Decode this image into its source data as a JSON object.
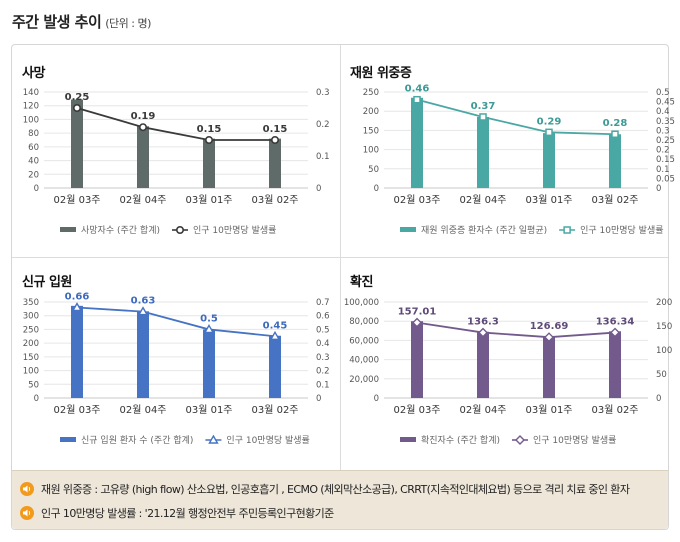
{
  "page": {
    "title": "주간 발생 추이",
    "unit": "(단위 : 명)"
  },
  "chart_data": [
    {
      "id": "deaths",
      "type": "bar",
      "title": "사망",
      "categories": [
        "02월 03주",
        "02월 04주",
        "03월 01주",
        "03월 02주"
      ],
      "bar_series": {
        "name": "사망자수 (주간 합계)",
        "values": [
          129,
          90,
          72,
          72
        ],
        "color": "#5f6b68"
      },
      "line_series": {
        "name": "인구 10만명당 발생률",
        "values": [
          0.25,
          0.19,
          0.15,
          0.15
        ],
        "labels": [
          "0.25",
          "0.19",
          "0.15",
          "0.15"
        ],
        "color": "#3a3a3a",
        "label_color": "#3a3a3a",
        "marker": "circle"
      },
      "left_axis": {
        "min": 0,
        "max": 140,
        "step": 20,
        "ticks": [
          "0",
          "20",
          "40",
          "60",
          "80",
          "100",
          "120",
          "140"
        ]
      },
      "right_axis": {
        "min": 0,
        "max": 0.3,
        "step": 0.1,
        "ticks": [
          "0",
          "0.1",
          "0.2",
          "0.3"
        ]
      },
      "grid": true,
      "legend": "bottom"
    },
    {
      "id": "severe",
      "type": "bar",
      "title": "재원 위중증",
      "categories": [
        "02월 03주",
        "02월 04주",
        "03월 01주",
        "03월 02주"
      ],
      "bar_series": {
        "name": "재원 위중증 환자수 (주간 일평균)",
        "values": [
          235,
          185,
          143,
          140
        ],
        "color": "#4aa8a4"
      },
      "line_series": {
        "name": "인구 10만명당 발생률",
        "values": [
          0.46,
          0.37,
          0.29,
          0.28
        ],
        "labels": [
          "0.46",
          "0.37",
          "0.29",
          "0.28"
        ],
        "color": "#4aa8a4",
        "label_color": "#3d9a96",
        "marker": "square"
      },
      "left_axis": {
        "min": 0,
        "max": 250,
        "step": 50,
        "ticks": [
          "0",
          "50",
          "100",
          "150",
          "200",
          "250"
        ]
      },
      "right_axis": {
        "min": 0,
        "max": 0.5,
        "step": 0.05,
        "ticks": [
          "0",
          "0.05",
          "0.1",
          "0.15",
          "0.2",
          "0.25",
          "0.3",
          "0.35",
          "0.4",
          "0.45",
          "0.5"
        ]
      },
      "grid": true,
      "legend": "bottom"
    },
    {
      "id": "admission",
      "type": "bar",
      "title": "신규 입원",
      "categories": [
        "02월 03주",
        "02월 04주",
        "03월 01주",
        "03월 02주"
      ],
      "bar_series": {
        "name": "신규 입원 환자 수 (주간 합계)",
        "values": [
          336,
          316,
          250,
          227
        ],
        "color": "#4673c4"
      },
      "line_series": {
        "name": "인구 10만명당 발생률",
        "values": [
          0.66,
          0.63,
          0.5,
          0.45
        ],
        "labels": [
          "0.66",
          "0.63",
          "0.5",
          "0.45"
        ],
        "color": "#4673c4",
        "label_color": "#3e6bbd",
        "marker": "triangle"
      },
      "left_axis": {
        "min": 0,
        "max": 350,
        "step": 50,
        "ticks": [
          "0",
          "50",
          "100",
          "150",
          "200",
          "250",
          "300",
          "350"
        ]
      },
      "right_axis": {
        "min": 0,
        "max": 0.7,
        "step": 0.1,
        "ticks": [
          "0",
          "0.1",
          "0.2",
          "0.3",
          "0.4",
          "0.5",
          "0.6",
          "0.7"
        ]
      },
      "grid": true,
      "legend": "bottom"
    },
    {
      "id": "confirmed",
      "type": "bar",
      "title": "확진",
      "categories": [
        "02월 03주",
        "02월 04주",
        "03월 01주",
        "03월 02주"
      ],
      "bar_series": {
        "name": "확진자수 (주간 합계)",
        "values": [
          80000,
          69000,
          64000,
          69500
        ],
        "color": "#735a8c"
      },
      "line_series": {
        "name": "인구 10만명당 발생률",
        "values": [
          157.01,
          136.3,
          126.69,
          136.34
        ],
        "labels": [
          "157.01",
          "136.3",
          "126.69",
          "136.34"
        ],
        "color": "#735a8c",
        "label_color": "#5f4b78",
        "marker": "diamond"
      },
      "left_axis": {
        "min": 0,
        "max": 100000,
        "step": 20000,
        "ticks": [
          "0",
          "20,000",
          "40,000",
          "60,000",
          "80,000",
          "100,000"
        ]
      },
      "right_axis": {
        "min": 0,
        "max": 200,
        "step": 50,
        "ticks": [
          "0",
          "50",
          "100",
          "150",
          "200"
        ]
      },
      "grid": true,
      "legend": "bottom"
    }
  ],
  "notes": [
    {
      "icon": "speaker-icon",
      "text": "재원 위중증 : 고유량 (high flow) 산소요법, 인공호흡기 , ECMO (체외막산소공급), CRRT(지속적인대체요법) 등으로 격리 치료 중인 환자"
    },
    {
      "icon": "speaker-icon",
      "text": "인구 10만명당 발생률 : '21.12월 행정안전부 주민등록인구현황기준"
    }
  ]
}
